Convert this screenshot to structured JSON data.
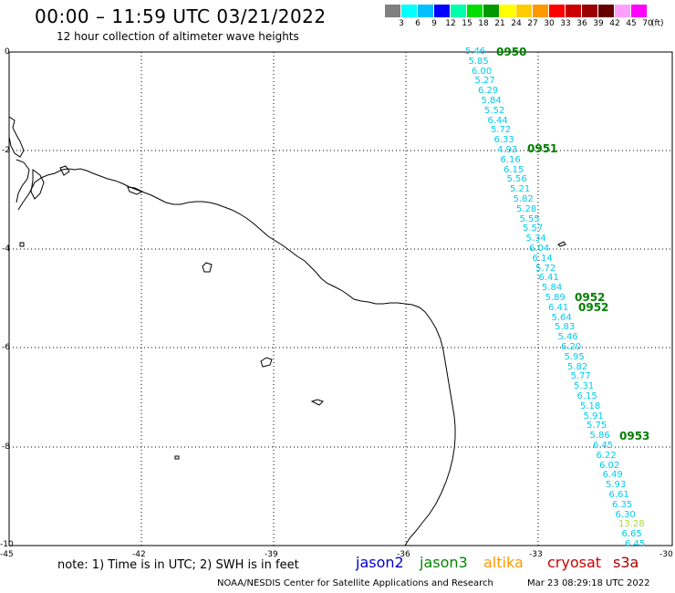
{
  "header": {
    "title": "00:00 – 11:59 UTC 03/21/2022",
    "subtitle": "12 hour collection of altimeter wave heights"
  },
  "legend": {
    "colors": [
      "#808080",
      "#00ffff",
      "#00bfff",
      "#0000ff",
      "#00ffaa",
      "#00dd00",
      "#009900",
      "#ffff00",
      "#ffcc00",
      "#ff9900",
      "#ff0000",
      "#cc0000",
      "#990000",
      "#660000",
      "#ffa0ff",
      "#ff00ff"
    ],
    "labels": [
      "3",
      "6",
      "9",
      "12",
      "15",
      "18",
      "21",
      "24",
      "27",
      "30",
      "33",
      "36",
      "39",
      "42",
      "45",
      "70"
    ],
    "unit": "(ft)"
  },
  "axes": {
    "lat_labels": [
      "0",
      "-2",
      "-4",
      "-6",
      "-8",
      "-10"
    ],
    "lon_labels": [
      "-45",
      "-42",
      "-39",
      "-36",
      "-33",
      "-30"
    ]
  },
  "track_points": [
    {
      "v": "5.46",
      "c": "#00ccee"
    },
    {
      "v": "5.85",
      "c": "#00ccee"
    },
    {
      "v": "6.00",
      "c": "#00ccee"
    },
    {
      "v": "5.27",
      "c": "#00ccee"
    },
    {
      "v": "6.29",
      "c": "#00ccee"
    },
    {
      "v": "5.84",
      "c": "#00ccee"
    },
    {
      "v": "5.52",
      "c": "#00ccee"
    },
    {
      "v": "6.44",
      "c": "#00ccee"
    },
    {
      "v": "5.72",
      "c": "#00ccee"
    },
    {
      "v": "6.33",
      "c": "#00ccee"
    },
    {
      "v": "4.93",
      "c": "#00ccee"
    },
    {
      "v": "6.16",
      "c": "#00ccee"
    },
    {
      "v": "6.15",
      "c": "#00ccee"
    },
    {
      "v": "5.56",
      "c": "#00ccee"
    },
    {
      "v": "5.21",
      "c": "#00ccee"
    },
    {
      "v": "5.82",
      "c": "#00ccee"
    },
    {
      "v": "5.28",
      "c": "#00ccee"
    },
    {
      "v": "5.55",
      "c": "#00ccee"
    },
    {
      "v": "5.57",
      "c": "#00ccee"
    },
    {
      "v": "5.34",
      "c": "#00ccee"
    },
    {
      "v": "6.04",
      "c": "#00ccee"
    },
    {
      "v": "6.14",
      "c": "#00ccee"
    },
    {
      "v": "5.72",
      "c": "#00ccee"
    },
    {
      "v": "6.41",
      "c": "#00ccee"
    },
    {
      "v": "5.84",
      "c": "#00ccee"
    },
    {
      "v": "5.89",
      "c": "#00ccee"
    },
    {
      "v": "6.41",
      "c": "#00ccee"
    },
    {
      "v": "5.64",
      "c": "#00ccee"
    },
    {
      "v": "5.83",
      "c": "#00ccee"
    },
    {
      "v": "5.46",
      "c": "#00ccee"
    },
    {
      "v": "6.20",
      "c": "#00ccee"
    },
    {
      "v": "5.95",
      "c": "#00ccee"
    },
    {
      "v": "5.82",
      "c": "#00ccee"
    },
    {
      "v": "5.77",
      "c": "#00ccee"
    },
    {
      "v": "5.31",
      "c": "#00ccee"
    },
    {
      "v": "6.15",
      "c": "#00ccee"
    },
    {
      "v": "5.18",
      "c": "#00ccee"
    },
    {
      "v": "5.91",
      "c": "#00ccee"
    },
    {
      "v": "5.75",
      "c": "#00ccee"
    },
    {
      "v": "5.86",
      "c": "#00ccee"
    },
    {
      "v": "6.45",
      "c": "#00ccee"
    },
    {
      "v": "6.22",
      "c": "#00ccee"
    },
    {
      "v": "6.02",
      "c": "#00ccee"
    },
    {
      "v": "6.49",
      "c": "#00ccee"
    },
    {
      "v": "5.93",
      "c": "#00ccee"
    },
    {
      "v": "6.61",
      "c": "#00ccee"
    },
    {
      "v": "6.35",
      "c": "#00ccee"
    },
    {
      "v": "6.30",
      "c": "#00ccee"
    },
    {
      "v": "13.28",
      "c": "#aadd33"
    },
    {
      "v": "6.65",
      "c": "#00ccee"
    },
    {
      "v": "6.45",
      "c": "#00ccee"
    }
  ],
  "time_labels": [
    "0950",
    "0951",
    "0952",
    "0952",
    "0953"
  ],
  "footer": {
    "note": "note: 1) Time is in UTC; 2) SWH is in feet",
    "satellites": [
      {
        "name": "jason2",
        "color": "#0000cc"
      },
      {
        "name": "jason3",
        "color": "#008800"
      },
      {
        "name": "altika",
        "color": "#ff9900"
      },
      {
        "name": "cryosat",
        "color": "#cc0000"
      },
      {
        "name": "s3a",
        "color": "#aa0000"
      }
    ],
    "credit": "NOAA/NESDIS Center for Satellite Applications and Research",
    "timestamp": "Mar 23 08:29:18 UTC 2022"
  }
}
